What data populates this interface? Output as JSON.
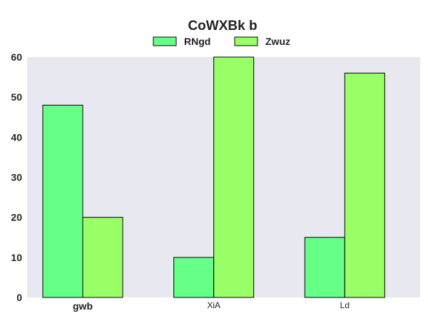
{
  "chart_data": {
    "type": "bar",
    "title": "CoWXBk b",
    "categories": [
      "gwb",
      "XiA",
      "Ld"
    ],
    "emphasized_category": "gwb",
    "series": [
      {
        "name": "RNgd",
        "values": [
          48,
          10,
          15
        ],
        "color": "#66ff88"
      },
      {
        "name": "Zwuz",
        "values": [
          20,
          60,
          56
        ],
        "color": "#99ff66"
      }
    ],
    "xlabel": "",
    "ylabel": "",
    "ylim": [
      0,
      60
    ],
    "yticks": [
      0,
      10,
      20,
      30,
      40,
      50,
      60
    ],
    "grid": false,
    "legend_position": "top-center",
    "plot_background": "#e8e8f0",
    "bar_edge_color": "#000000"
  }
}
